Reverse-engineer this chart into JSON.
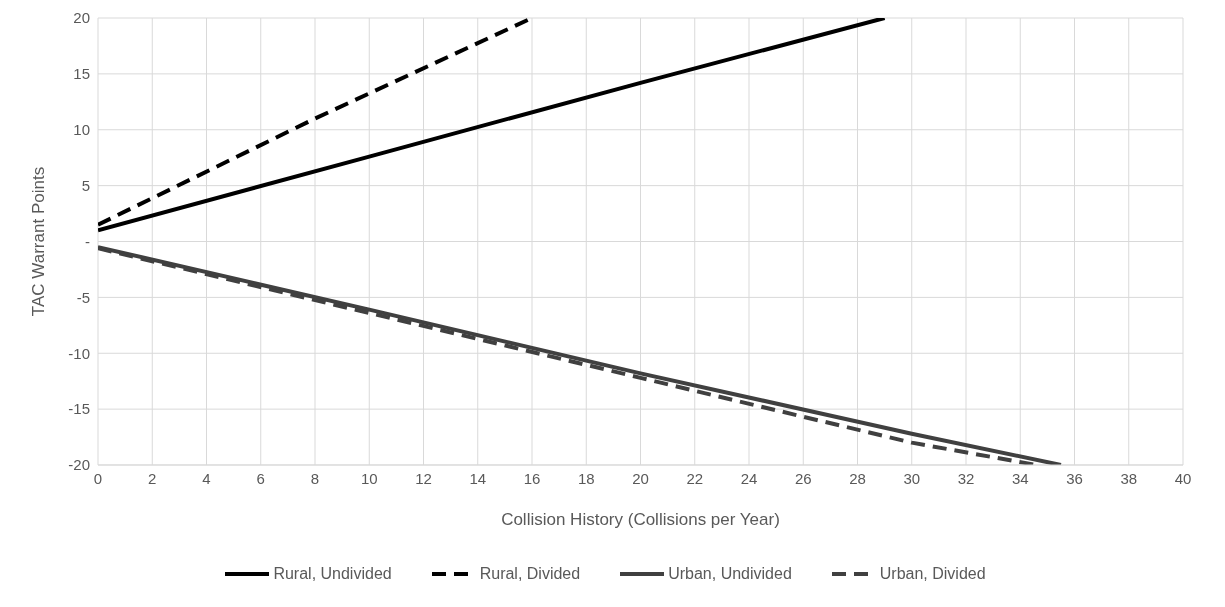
{
  "chart_data": {
    "type": "line",
    "xlabel": "Collision History (Collisions per Year)",
    "ylabel": "TAC Warrant Points",
    "xlim": [
      0,
      40
    ],
    "xticks": [
      0,
      2,
      4,
      6,
      8,
      10,
      12,
      14,
      16,
      18,
      20,
      22,
      24,
      26,
      28,
      30,
      32,
      34,
      36,
      38,
      40
    ],
    "ylim": [
      -20,
      20
    ],
    "yticks": [
      -20,
      -15,
      -10,
      -5,
      {
        "value": 0,
        "label": "-"
      },
      5,
      10,
      15,
      20
    ],
    "grid": true,
    "legend": "bottom",
    "marker": "none",
    "series": [
      {
        "name": "Rural, Undivided",
        "color": "#000000",
        "line_style": "solid",
        "x": [
          0,
          10,
          20,
          29
        ],
        "values": [
          1,
          7.6,
          14.2,
          20
        ]
      },
      {
        "name": "Rural, Divided",
        "color": "#000000",
        "line_style": "dashed",
        "x": [
          0,
          8,
          16
        ],
        "values": [
          1.5,
          11,
          20
        ]
      },
      {
        "name": "Urban, Undivided",
        "color": "#404040",
        "line_style": "solid",
        "x": [
          0,
          10,
          20,
          30,
          35.5
        ],
        "values": [
          -0.5,
          -6.1,
          -11.8,
          -17.2,
          -20
        ]
      },
      {
        "name": "Urban, Divided",
        "color": "#404040",
        "line_style": "dashed",
        "x": [
          0,
          10,
          20,
          30,
          34.6
        ],
        "values": [
          -0.6,
          -6.4,
          -12.2,
          -18,
          -20
        ]
      }
    ]
  }
}
